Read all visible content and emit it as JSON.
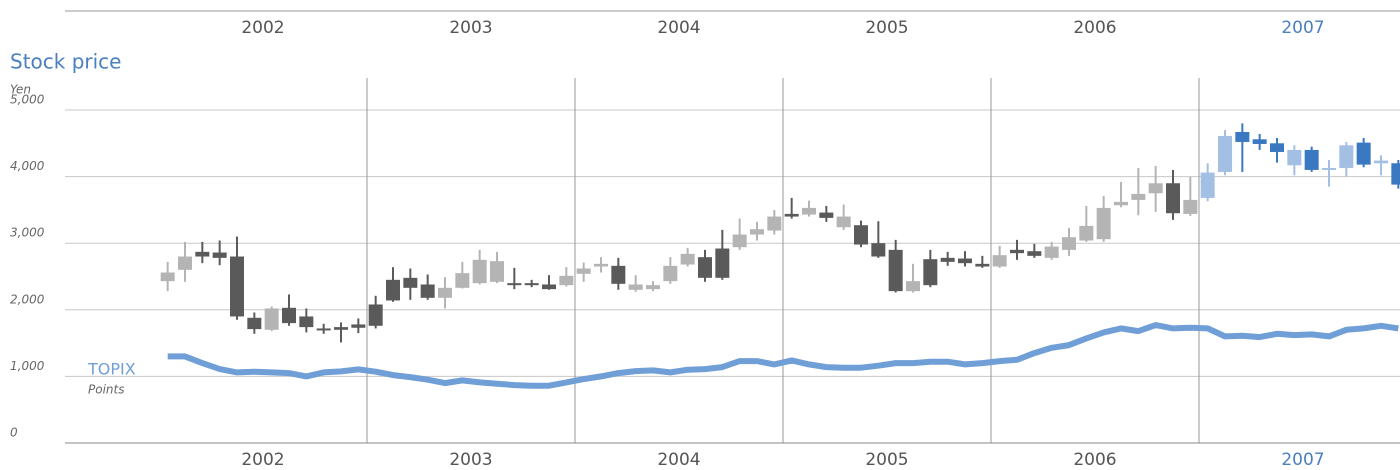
{
  "chart_data": {
    "type": "candlestick",
    "title": "Stock price",
    "title_color": "#4a7fc1",
    "y_unit": "Yen",
    "ylim": [
      0,
      5000
    ],
    "yticks": [
      0,
      {
        "value": 1000,
        "label": "1,000"
      },
      {
        "value": 2000,
        "label": "2,000"
      },
      {
        "value": 3000,
        "label": "3,000"
      },
      {
        "value": 4000,
        "label": "4,000"
      },
      {
        "value": 5000,
        "label": "5,000"
      }
    ],
    "grid": true,
    "years": [
      {
        "label": "2002",
        "up_color": "#b4b4b4",
        "down_color": "#5a5a5a",
        "label_color": "#555555"
      },
      {
        "label": "2003",
        "up_color": "#b4b4b4",
        "down_color": "#5a5a5a",
        "label_color": "#555555"
      },
      {
        "label": "2004",
        "up_color": "#b4b4b4",
        "down_color": "#5a5a5a",
        "label_color": "#555555"
      },
      {
        "label": "2005",
        "up_color": "#b4b4b4",
        "down_color": "#5a5a5a",
        "label_color": "#555555"
      },
      {
        "label": "2006",
        "up_color": "#b4b4b4",
        "down_color": "#5a5a5a",
        "label_color": "#555555"
      },
      {
        "label": "2007",
        "up_color": "#a3bfe3",
        "down_color": "#3a78c2",
        "label_color": "#4a7fc1"
      }
    ],
    "open": [
      2430,
      2600,
      2870,
      2860,
      2800,
      1880,
      1700,
      2030,
      1900,
      1720,
      1740,
      1780,
      2080,
      2450,
      2480,
      2380,
      2180,
      2330,
      2400,
      2420,
      2400,
      2400,
      2380,
      2370,
      2540,
      2650,
      2660,
      2300,
      2310,
      2430,
      2680,
      2790,
      2920,
      2940,
      3130,
      3190,
      3440,
      3430,
      3460,
      3240,
      3270,
      3000,
      2900,
      2280,
      2760,
      2780,
      2770,
      2690,
      2650,
      2900,
      2880,
      2780,
      2900,
      3040,
      3060,
      3570,
      3650,
      3750,
      3900,
      3440,
      3680,
      4070,
      4670,
      4560,
      4500,
      4170,
      4400,
      4100,
      4130,
      4510,
      4200,
      4200
    ],
    "high": [
      2720,
      3020,
      3020,
      3040,
      3100,
      1960,
      2050,
      2230,
      2020,
      1790,
      1810,
      1870,
      2210,
      2640,
      2620,
      2530,
      2490,
      2720,
      2900,
      2870,
      2630,
      2450,
      2520,
      2640,
      2710,
      2790,
      2780,
      2520,
      2430,
      2790,
      2930,
      2900,
      3200,
      3370,
      3320,
      3500,
      3680,
      3640,
      3560,
      3580,
      3340,
      3330,
      3050,
      2690,
      2900,
      2870,
      2880,
      2810,
      2960,
      3050,
      2990,
      3020,
      3230,
      3560,
      3710,
      3920,
      4130,
      4160,
      4100,
      4000,
      4200,
      4700,
      4800,
      4640,
      4580,
      4470,
      4450,
      4250,
      4520,
      4580,
      4320,
      4250
    ],
    "low": [
      2280,
      2420,
      2700,
      2670,
      1850,
      1640,
      1680,
      1760,
      1660,
      1640,
      1510,
      1650,
      1720,
      2120,
      2150,
      2150,
      2020,
      2320,
      2380,
      2400,
      2310,
      2340,
      2300,
      2350,
      2420,
      2560,
      2300,
      2270,
      2280,
      2390,
      2650,
      2420,
      2450,
      2900,
      3040,
      3130,
      3370,
      3400,
      3320,
      3200,
      2940,
      2780,
      2260,
      2260,
      2340,
      2660,
      2650,
      2630,
      2630,
      2750,
      2780,
      2750,
      2810,
      3020,
      3020,
      3540,
      3420,
      3470,
      3350,
      3410,
      3630,
      4020,
      4070,
      4400,
      4210,
      4020,
      4070,
      3850,
      4000,
      4140,
      4020,
      3820
    ],
    "close": [
      2560,
      2800,
      2800,
      2780,
      1900,
      1710,
      2020,
      1800,
      1740,
      1690,
      1700,
      1730,
      1760,
      2140,
      2330,
      2180,
      2330,
      2550,
      2750,
      2730,
      2380,
      2370,
      2310,
      2510,
      2620,
      2690,
      2390,
      2380,
      2370,
      2660,
      2840,
      2480,
      2480,
      3130,
      3210,
      3400,
      3400,
      3530,
      3380,
      3400,
      2980,
      2800,
      2280,
      2430,
      2370,
      2720,
      2700,
      2650,
      2820,
      2850,
      2810,
      2950,
      3090,
      3260,
      3530,
      3620,
      3740,
      3900,
      3450,
      3650,
      4060,
      4610,
      4520,
      4490,
      4370,
      4400,
      4100,
      4130,
      4470,
      4180,
      4240,
      3880
    ],
    "topix": {
      "name": "TOPIX",
      "unit": "Points",
      "color": "#6f9fd6",
      "values": [
        1300,
        1300,
        1200,
        1110,
        1060,
        1070,
        1060,
        1050,
        1000,
        1060,
        1075,
        1105,
        1070,
        1020,
        990,
        950,
        900,
        940,
        910,
        890,
        870,
        860,
        860,
        910,
        960,
        1000,
        1050,
        1080,
        1090,
        1060,
        1100,
        1110,
        1140,
        1230,
        1230,
        1180,
        1240,
        1180,
        1140,
        1130,
        1130,
        1160,
        1200,
        1200,
        1220,
        1220,
        1180,
        1200,
        1230,
        1250,
        1350,
        1430,
        1470,
        1570,
        1660,
        1720,
        1680,
        1770,
        1720,
        1730,
        1720,
        1600,
        1610,
        1590,
        1640,
        1620,
        1630,
        1600,
        1700,
        1720,
        1760,
        1720
      ]
    }
  }
}
